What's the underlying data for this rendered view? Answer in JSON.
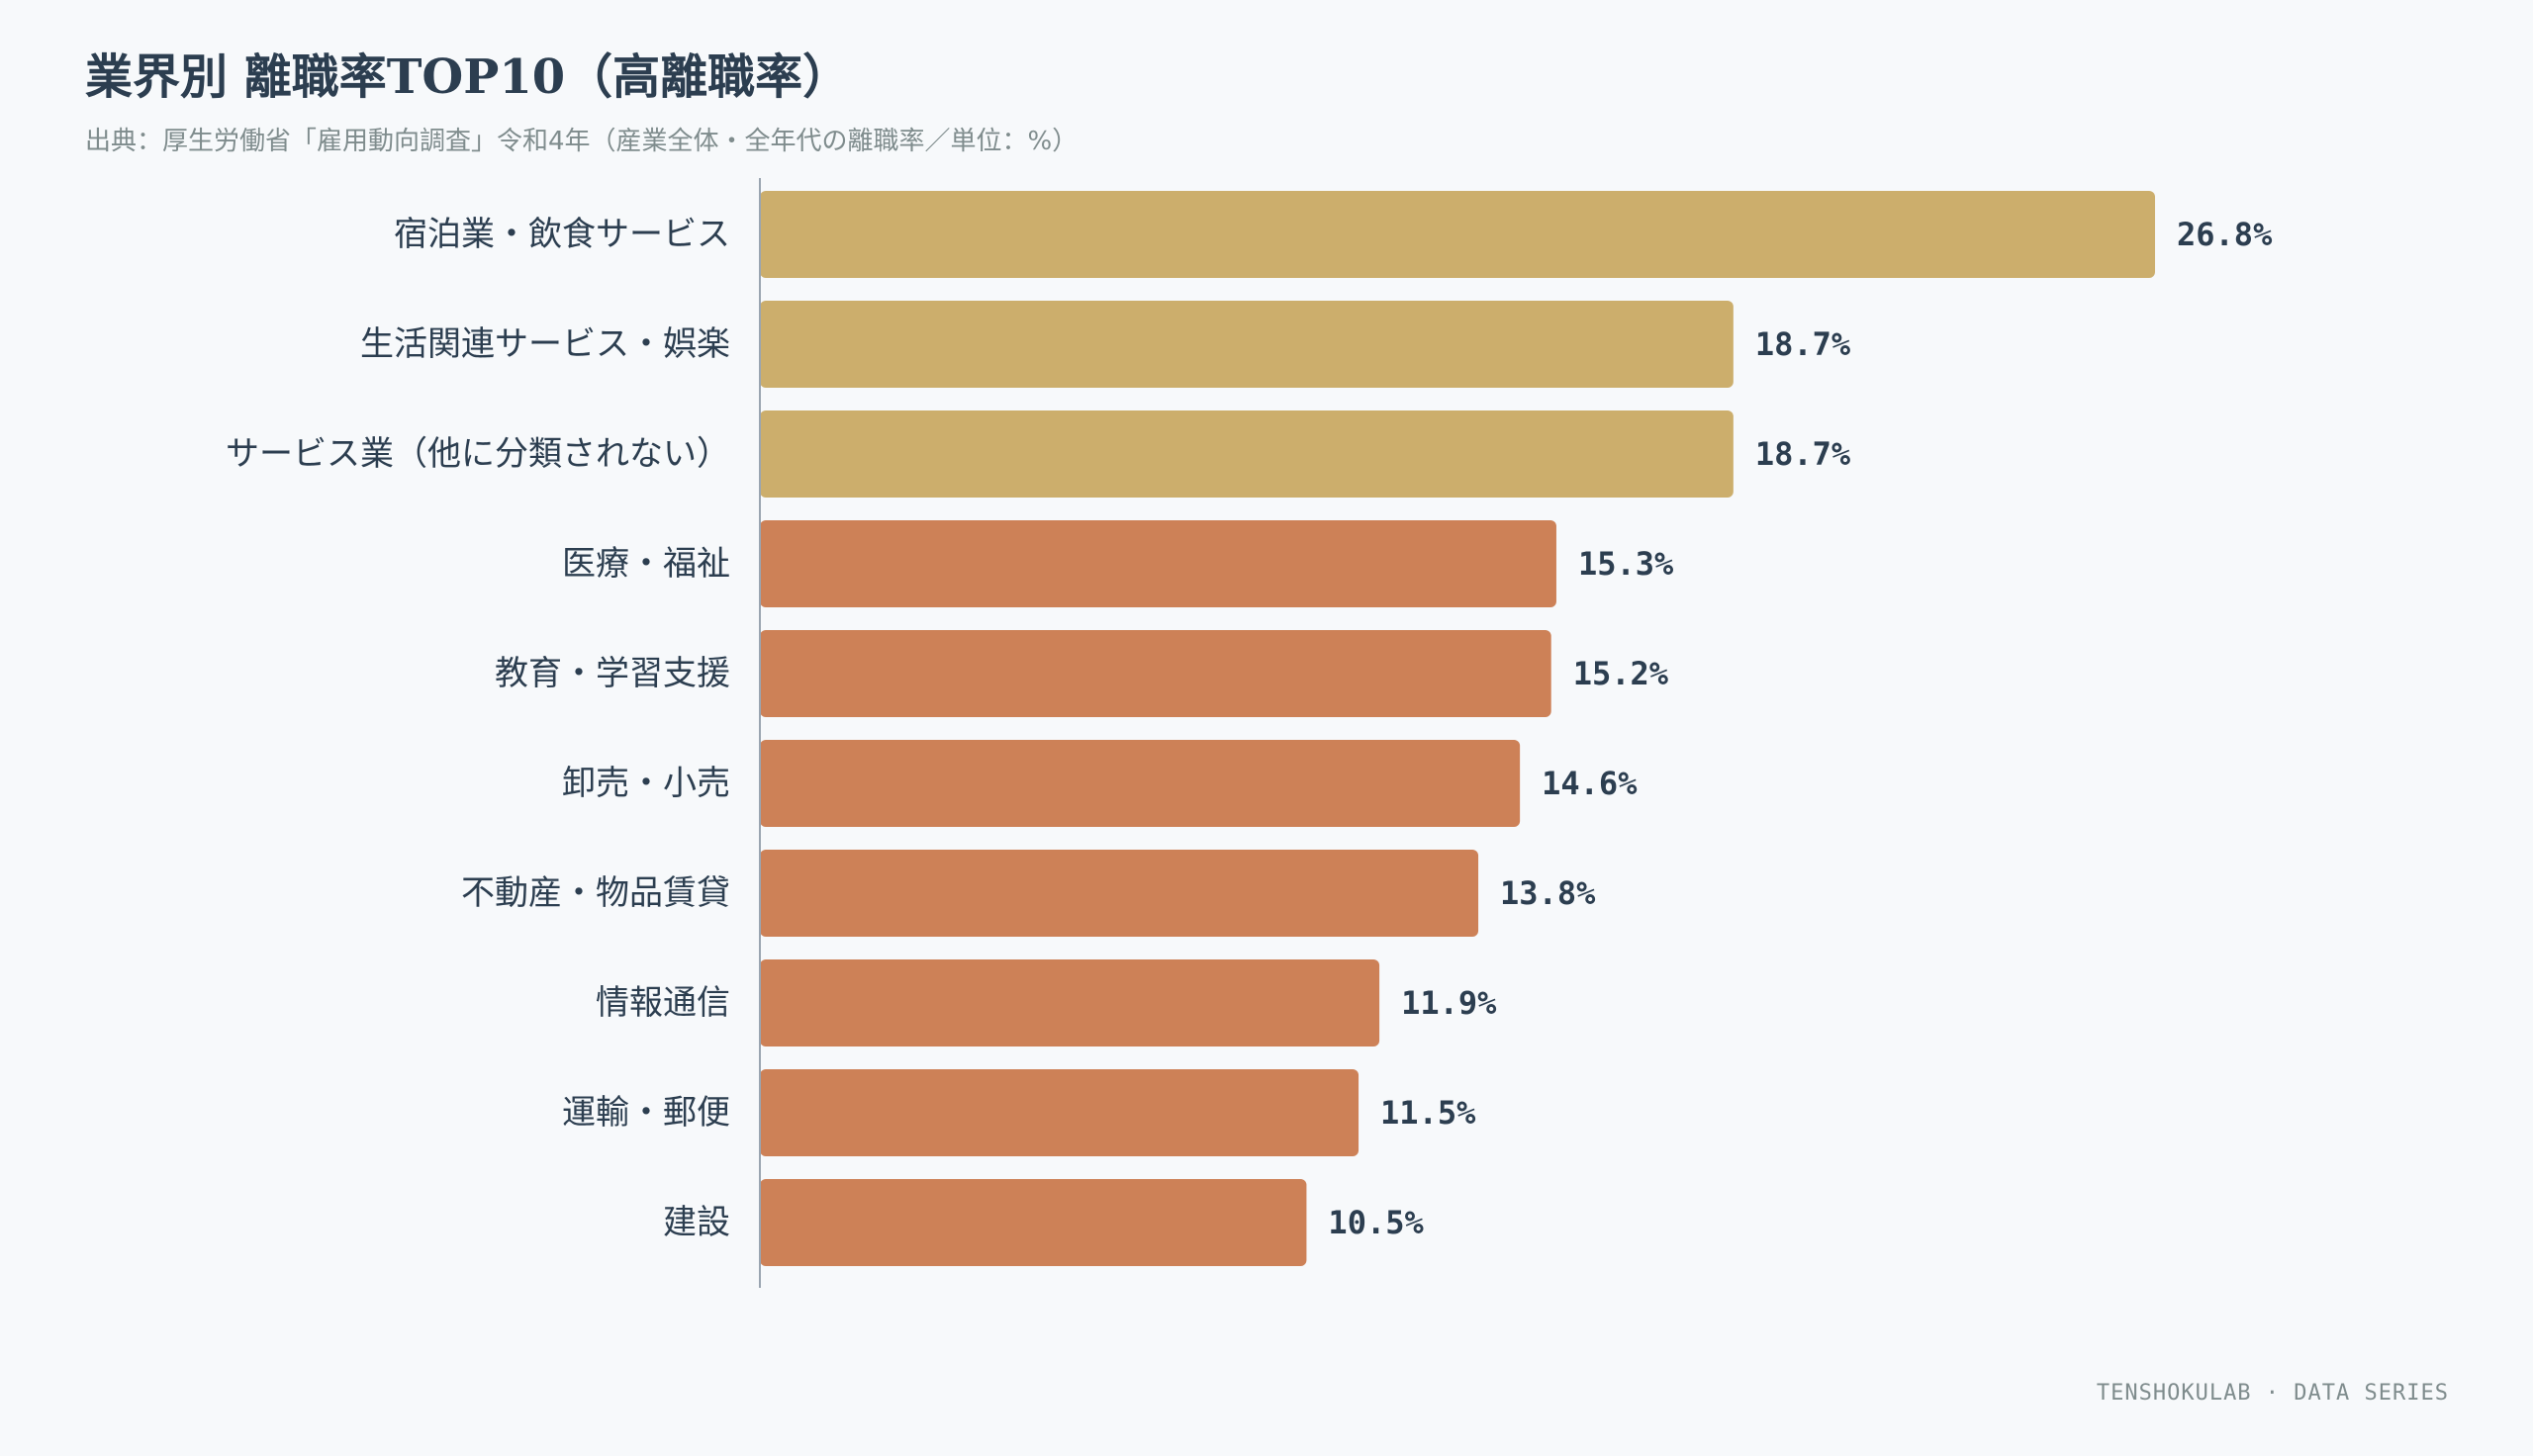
{
  "header": {
    "title": "業界別 離職率TOP10（高離職率）",
    "subtitle": "出典：厚生労働省「雇用動向調査」令和4年（産業全体・全年代の離職率／単位：%）"
  },
  "footer": {
    "brand": "TENSHOKULAB · DATA SERIES"
  },
  "colors": {
    "top3": "#ccae6c",
    "rest": "#cd8157",
    "axis": "#9aa5b1",
    "text": "#2c3e50",
    "muted": "#7f8c8d",
    "background": "#f7f9fb"
  },
  "chart_data": {
    "type": "bar",
    "orientation": "horizontal",
    "categories": [
      "宿泊業・飲食サービス",
      "生活関連サービス・娯楽",
      "サービス業（他に分類されない）",
      "医療・福祉",
      "教育・学習支援",
      "卸売・小売",
      "不動産・物品賃貸",
      "情報通信",
      "運輸・郵便",
      "建設"
    ],
    "values": [
      26.8,
      18.7,
      18.7,
      15.3,
      15.2,
      14.6,
      13.8,
      11.9,
      11.5,
      10.5
    ],
    "value_labels": [
      "26.8%",
      "18.7%",
      "18.7%",
      "15.3%",
      "15.2%",
      "14.6%",
      "13.8%",
      "11.9%",
      "11.5%",
      "10.5%"
    ],
    "highlight_top": 3,
    "xlim": [
      0,
      26.8
    ],
    "grid": false,
    "legend": "none"
  }
}
